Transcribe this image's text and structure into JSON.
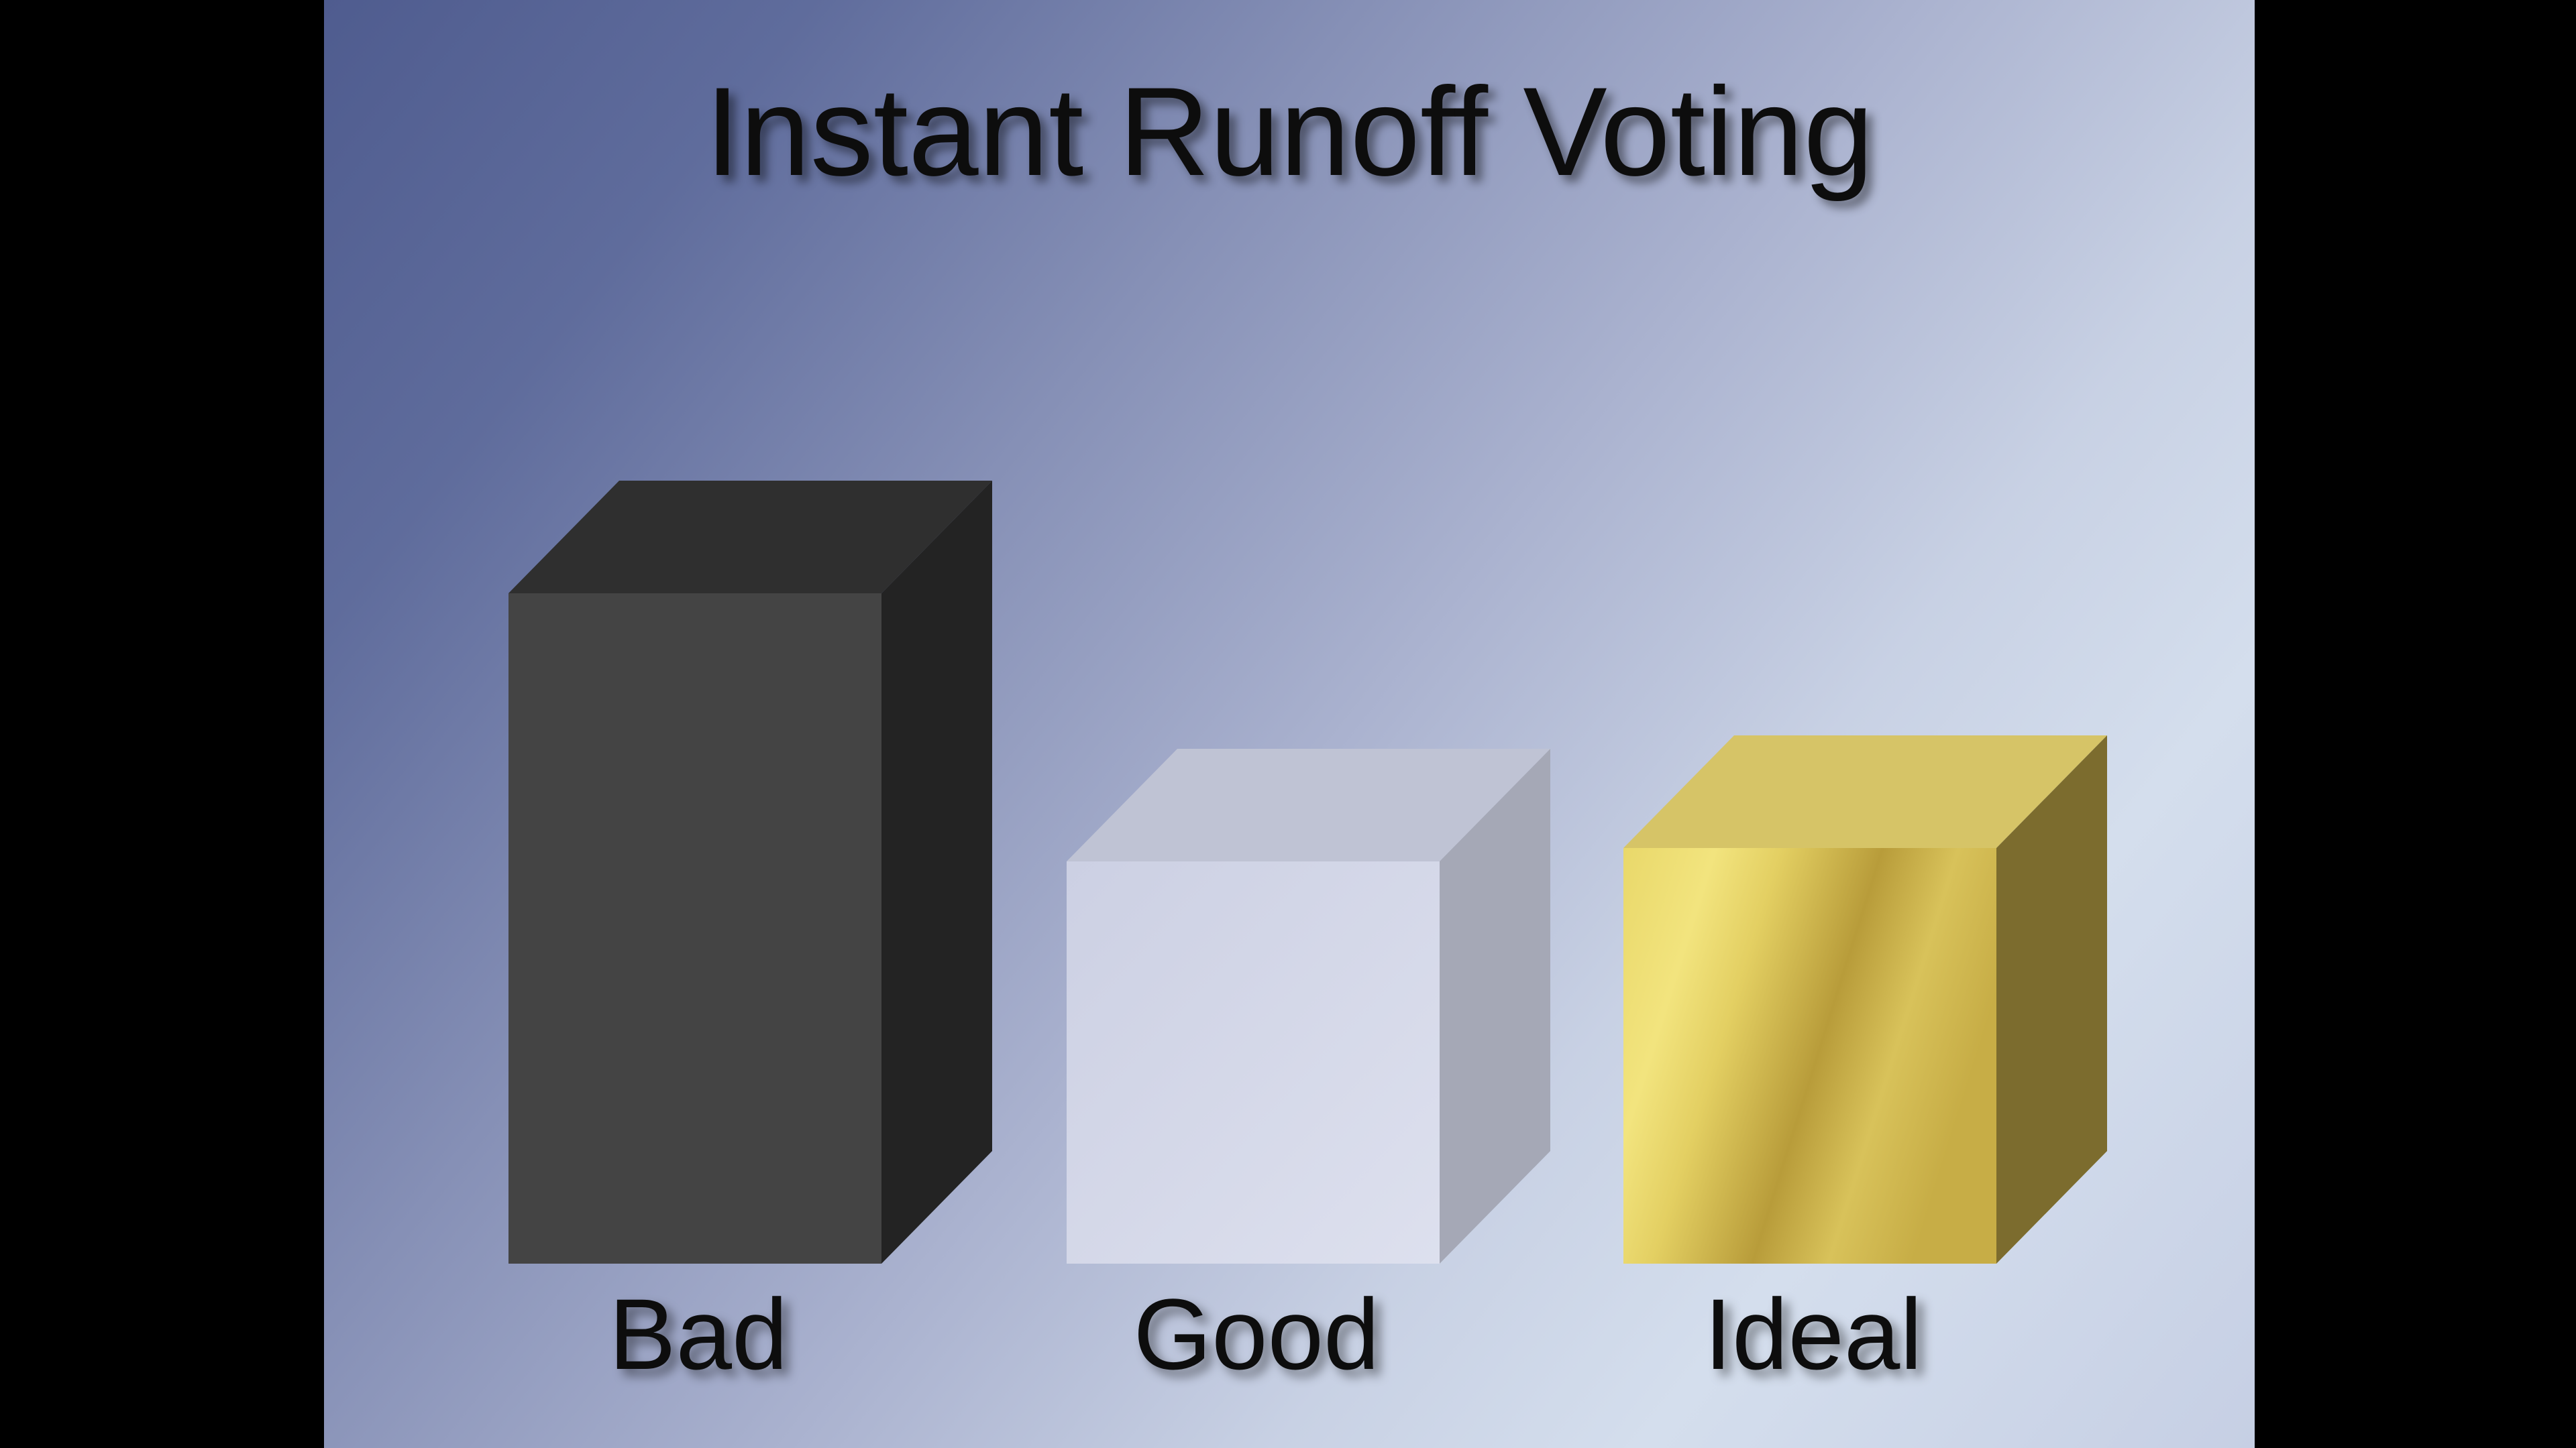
{
  "slide": {
    "title": "Instant Runoff Voting"
  },
  "chart_data": {
    "type": "bar",
    "title": "Instant Runoff Voting",
    "categories": [
      "Bad",
      "Good",
      "Ideal"
    ],
    "values": [
      1.0,
      0.6,
      0.62
    ],
    "ylim": [
      0,
      1.0
    ],
    "grid": false,
    "legend": "none",
    "colors": [
      "#444444",
      "#d2d5e5",
      "#c9b24a"
    ]
  }
}
